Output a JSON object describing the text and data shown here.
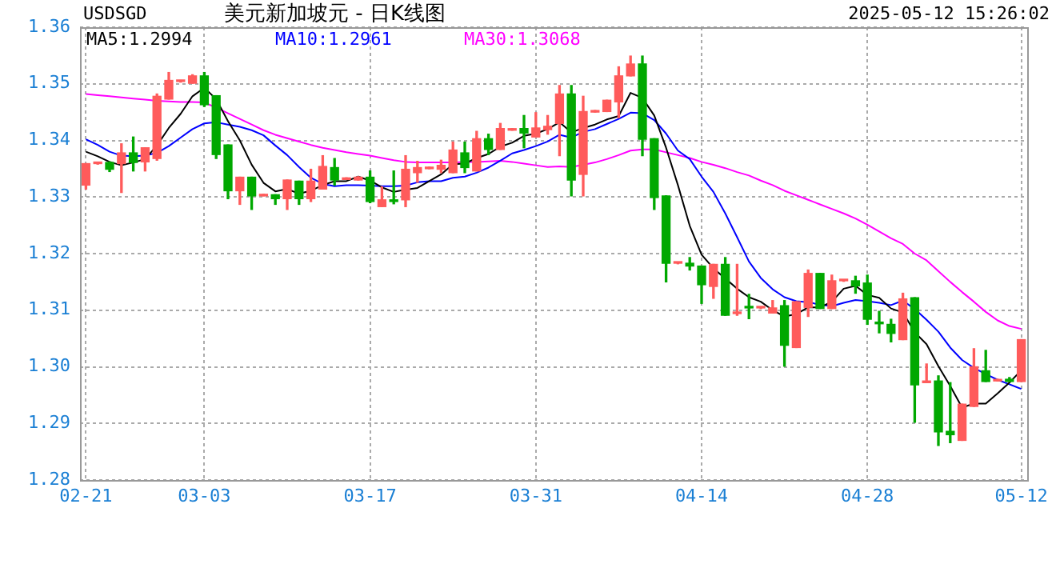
{
  "chart_data": {
    "type": "candlestick",
    "title": "美元新加坡元 - 日K线图",
    "subtitle": "2025-05-12 15:26:02",
    "annotations": [
      "USDSGD"
    ],
    "categories": [
      "02-21",
      null,
      null,
      null,
      null,
      null,
      null,
      null,
      null,
      null,
      "03-03",
      null,
      null,
      null,
      null,
      null,
      null,
      null,
      null,
      null,
      null,
      null,
      null,
      null,
      "03-17",
      null,
      null,
      null,
      null,
      null,
      null,
      null,
      null,
      null,
      null,
      null,
      null,
      null,
      "03-31",
      null,
      null,
      null,
      null,
      null,
      null,
      null,
      null,
      null,
      null,
      null,
      null,
      null,
      "04-14",
      null,
      null,
      null,
      null,
      null,
      null,
      null,
      null,
      null,
      null,
      null,
      null,
      null,
      "04-28",
      null,
      null,
      null,
      null,
      null,
      null,
      null,
      null,
      null,
      null,
      null,
      null,
      "05-12"
    ],
    "ohlc": [
      [
        1.3321,
        1.3359,
        1.3314,
        1.3359
      ],
      [
        1.3359,
        1.336,
        1.3358,
        1.336
      ],
      [
        1.3361,
        1.3362,
        1.3345,
        1.3349
      ],
      [
        1.3359,
        1.3394,
        1.3308,
        1.3378
      ],
      [
        1.3378,
        1.3406,
        1.3346,
        1.3361
      ],
      [
        1.3362,
        1.3387,
        1.3346,
        1.3387
      ],
      [
        1.3368,
        1.3482,
        1.3365,
        1.3478
      ],
      [
        1.3473,
        1.352,
        1.3473,
        1.3506
      ],
      [
        1.3504,
        1.3506,
        1.3503,
        1.3505
      ],
      [
        1.3501,
        1.3516,
        1.3501,
        1.3514
      ],
      [
        1.3514,
        1.352,
        1.346,
        1.3463
      ],
      [
        1.3479,
        1.3479,
        1.3368,
        1.3375
      ],
      [
        1.3392,
        1.3392,
        1.3297,
        1.3311
      ],
      [
        1.3311,
        1.3335,
        1.3287,
        1.3335
      ],
      [
        1.3335,
        1.3335,
        1.3278,
        1.3302
      ],
      [
        1.3302,
        1.3304,
        1.3302,
        1.3304
      ],
      [
        1.3304,
        1.3304,
        1.3287,
        1.3297
      ],
      [
        1.3297,
        1.333,
        1.3278,
        1.333
      ],
      [
        1.3328,
        1.3328,
        1.3287,
        1.3297
      ],
      [
        1.3297,
        1.3349,
        1.3292,
        1.3328
      ],
      [
        1.3314,
        1.3373,
        1.3314,
        1.3354
      ],
      [
        1.3352,
        1.3368,
        1.3321,
        1.333
      ],
      [
        1.3331,
        1.3333,
        1.3331,
        1.3332
      ],
      [
        1.333,
        1.3336,
        1.333,
        1.3335
      ],
      [
        1.3335,
        1.3346,
        1.329,
        1.3292
      ],
      [
        1.3283,
        1.3318,
        1.3283,
        1.3295
      ],
      [
        1.3295,
        1.3346,
        1.3288,
        1.3292
      ],
      [
        1.3295,
        1.3373,
        1.3283,
        1.3349
      ],
      [
        1.3343,
        1.3363,
        1.3326,
        1.3352
      ],
      [
        1.335,
        1.3352,
        1.335,
        1.3351
      ],
      [
        1.3349,
        1.3365,
        1.3343,
        1.3356
      ],
      [
        1.3343,
        1.3397,
        1.3343,
        1.3383
      ],
      [
        1.3378,
        1.3397,
        1.3343,
        1.3352
      ],
      [
        1.3346,
        1.3416,
        1.3346,
        1.3403
      ],
      [
        1.3403,
        1.3411,
        1.3375,
        1.3384
      ],
      [
        1.3384,
        1.343,
        1.3384,
        1.3421
      ],
      [
        1.3418,
        1.342,
        1.3418,
        1.3419
      ],
      [
        1.3421,
        1.3444,
        1.3387,
        1.3413
      ],
      [
        1.3406,
        1.3449,
        1.3406,
        1.3422
      ],
      [
        1.3419,
        1.3444,
        1.3411,
        1.3425
      ],
      [
        1.343,
        1.3497,
        1.3373,
        1.3482
      ],
      [
        1.3482,
        1.3497,
        1.3302,
        1.333
      ],
      [
        1.334,
        1.3478,
        1.3302,
        1.3451
      ],
      [
        1.345,
        1.3452,
        1.345,
        1.3451
      ],
      [
        1.3451,
        1.3471,
        1.3451,
        1.3471
      ],
      [
        1.3468,
        1.353,
        1.344,
        1.3514
      ],
      [
        1.3514,
        1.3549,
        1.3514,
        1.3535
      ],
      [
        1.3535,
        1.3549,
        1.3373,
        1.3402
      ],
      [
        1.3403,
        1.3403,
        1.3278,
        1.3299
      ],
      [
        1.3302,
        1.3302,
        1.315,
        1.3183
      ],
      [
        1.3183,
        1.3184,
        1.3182,
        1.3184
      ],
      [
        1.3183,
        1.3193,
        1.3171,
        1.3178
      ],
      [
        1.3178,
        1.3178,
        1.3112,
        1.3145
      ],
      [
        1.3142,
        1.3181,
        1.3121,
        1.3181
      ],
      [
        1.3181,
        1.3193,
        1.3091,
        1.3091
      ],
      [
        1.3094,
        1.3181,
        1.3091,
        1.3095
      ],
      [
        1.3106,
        1.3128,
        1.3085,
        1.3104
      ],
      [
        1.3104,
        1.3105,
        1.3103,
        1.3105
      ],
      [
        1.3095,
        1.3117,
        1.3095,
        1.3104
      ],
      [
        1.3108,
        1.3117,
        1.3001,
        1.3038
      ],
      [
        1.3034,
        1.3115,
        1.3034,
        1.3115
      ],
      [
        1.3105,
        1.3171,
        1.3089,
        1.3165
      ],
      [
        1.3165,
        1.3165,
        1.3103,
        1.3103
      ],
      [
        1.3103,
        1.3162,
        1.3103,
        1.3152
      ],
      [
        1.3152,
        1.3153,
        1.3151,
        1.3153
      ],
      [
        1.3152,
        1.316,
        1.313,
        1.3143
      ],
      [
        1.3148,
        1.3162,
        1.3075,
        1.3084
      ],
      [
        1.3079,
        1.3098,
        1.306,
        1.3076
      ],
      [
        1.3075,
        1.3084,
        1.3044,
        1.3059
      ],
      [
        1.3048,
        1.313,
        1.3048,
        1.312
      ],
      [
        1.3122,
        1.3122,
        1.2902,
        1.2968
      ],
      [
        1.2972,
        1.3005,
        1.2972,
        1.2975
      ],
      [
        1.2975,
        1.2984,
        1.2861,
        1.2885
      ],
      [
        1.2886,
        1.2972,
        1.2866,
        1.288
      ],
      [
        1.287,
        1.2934,
        1.287,
        1.2934
      ],
      [
        1.293,
        1.3032,
        1.293,
        1.3
      ],
      [
        1.2993,
        1.3029,
        1.2974,
        1.2974
      ],
      [
        1.2975,
        1.2976,
        1.2975,
        1.2976
      ],
      [
        1.2978,
        1.2981,
        1.2974,
        1.2974
      ],
      [
        1.2974,
        1.3048,
        1.2974,
        1.3048
      ]
    ],
    "colors": [
      "#ff5b5b",
      "#ff5b5b",
      "#00a800",
      "#ff5b5b",
      "#00a800",
      "#ff5b5b",
      "#ff5b5b",
      "#ff5b5b",
      "#ff5b5b",
      "#ff5b5b",
      "#00a800",
      "#00a800",
      "#00a800",
      "#ff5b5b",
      "#00a800",
      "#ff5b5b",
      "#00a800",
      "#ff5b5b",
      "#00a800",
      "#ff5b5b",
      "#ff5b5b",
      "#00a800",
      "#ff5b5b",
      "#ff5b5b",
      "#00a800",
      "#ff5b5b",
      "#00a800",
      "#ff5b5b",
      "#ff5b5b",
      "#ff5b5b",
      "#ff5b5b",
      "#ff5b5b",
      "#00a800",
      "#ff5b5b",
      "#00a800",
      "#ff5b5b",
      "#ff5b5b",
      "#00a800",
      "#ff5b5b",
      "#ff5b5b",
      "#ff5b5b",
      "#00a800",
      "#ff5b5b",
      "#ff5b5b",
      "#ff5b5b",
      "#ff5b5b",
      "#ff5b5b",
      "#00a800",
      "#00a800",
      "#00a800",
      "#ff5b5b",
      "#00a800",
      "#00a800",
      "#ff5b5b",
      "#00a800",
      "#ff5b5b",
      "#00a800",
      "#ff5b5b",
      "#ff5b5b",
      "#00a800",
      "#ff5b5b",
      "#ff5b5b",
      "#00a800",
      "#ff5b5b",
      "#ff5b5b",
      "#00a800",
      "#00a800",
      "#00a800",
      "#00a800",
      "#ff5b5b",
      "#00a800",
      "#ff5b5b",
      "#00a800",
      "#00a800",
      "#ff5b5b",
      "#ff5b5b",
      "#00a800",
      "#ff5b5b",
      "#00a800",
      "#ff5b5b"
    ],
    "series": [
      {
        "name": "MA5:1.2994",
        "type": "line",
        "color": "#000000",
        "values": [
          1.338,
          1.3372,
          1.3362,
          1.3356,
          1.3361,
          1.3367,
          1.3391,
          1.3422,
          1.3447,
          1.3478,
          1.3493,
          1.3473,
          1.3434,
          1.34,
          1.3357,
          1.3325,
          1.331,
          1.3314,
          1.3306,
          1.3311,
          1.3321,
          1.3328,
          1.3328,
          1.3336,
          1.3329,
          1.3317,
          1.3309,
          1.3313,
          1.3316,
          1.3328,
          1.334,
          1.3358,
          1.3359,
          1.3369,
          1.3376,
          1.3389,
          1.3396,
          1.3408,
          1.3412,
          1.342,
          1.3432,
          1.3414,
          1.3422,
          1.3428,
          1.3437,
          1.3443,
          1.3484,
          1.3475,
          1.3444,
          1.3387,
          1.3321,
          1.3249,
          1.3198,
          1.3174,
          1.3156,
          1.3138,
          1.3123,
          1.3115,
          1.31,
          1.3089,
          1.3093,
          1.3105,
          1.3105,
          1.3115,
          1.3138,
          1.3143,
          1.3127,
          1.3122,
          1.3103,
          1.3096,
          1.3061,
          1.304,
          1.3001,
          1.2966,
          1.2928,
          1.2935,
          1.2935,
          1.2953,
          1.2972,
          1.2994
        ]
      },
      {
        "name": "MA10:1.2961",
        "type": "line",
        "color": "#0000ff",
        "values": [
          1.3402,
          1.3392,
          1.338,
          1.3373,
          1.3372,
          1.3373,
          1.3378,
          1.339,
          1.3405,
          1.342,
          1.343,
          1.3432,
          1.3428,
          1.3424,
          1.3418,
          1.3409,
          1.3391,
          1.3374,
          1.3353,
          1.3334,
          1.3323,
          1.3319,
          1.3321,
          1.3321,
          1.332,
          1.3319,
          1.3319,
          1.332,
          1.3326,
          1.3328,
          1.3328,
          1.3334,
          1.3336,
          1.3343,
          1.3352,
          1.3364,
          1.3377,
          1.3383,
          1.339,
          1.3398,
          1.341,
          1.3405,
          1.3415,
          1.342,
          1.3429,
          1.3438,
          1.3449,
          1.3448,
          1.3436,
          1.3412,
          1.3382,
          1.3367,
          1.3336,
          1.3309,
          1.3271,
          1.3229,
          1.3186,
          1.3157,
          1.3137,
          1.3123,
          1.3116,
          1.3114,
          1.311,
          1.3107,
          1.3113,
          1.3118,
          1.3116,
          1.3113,
          1.3109,
          1.3117,
          1.3102,
          1.3083,
          1.3062,
          1.3034,
          1.3012,
          1.2998,
          1.2987,
          1.2977,
          1.2969,
          1.2961
        ]
      },
      {
        "name": "MA30:1.3068",
        "type": "line",
        "color": "#ff00ff",
        "values": [
          1.3482,
          1.348,
          1.3478,
          1.3476,
          1.3474,
          1.3472,
          1.347,
          1.3469,
          1.3468,
          1.3468,
          1.3467,
          1.3458,
          1.3448,
          1.3438,
          1.3428,
          1.3418,
          1.341,
          1.3404,
          1.3398,
          1.3392,
          1.3387,
          1.3383,
          1.3379,
          1.3376,
          1.3373,
          1.3369,
          1.3365,
          1.3362,
          1.3361,
          1.3361,
          1.3361,
          1.3361,
          1.3362,
          1.3362,
          1.3363,
          1.3364,
          1.3362,
          1.3359,
          1.3356,
          1.3353,
          1.3354,
          1.3353,
          1.3357,
          1.3361,
          1.3367,
          1.3374,
          1.3382,
          1.3384,
          1.3384,
          1.3379,
          1.3374,
          1.3369,
          1.3362,
          1.3357,
          1.3351,
          1.3344,
          1.3338,
          1.3329,
          1.3321,
          1.3311,
          1.3303,
          1.3295,
          1.3287,
          1.3279,
          1.3271,
          1.3262,
          1.3251,
          1.3239,
          1.3227,
          1.3217,
          1.32,
          1.3188,
          1.3169,
          1.315,
          1.3132,
          1.3115,
          1.3097,
          1.3082,
          1.3072,
          1.3067
        ]
      }
    ],
    "ylim": [
      1.28,
      1.36
    ],
    "yticks": [
      1.28,
      1.29,
      {
        "value": 1.3,
        "label": "1.30"
      },
      1.31,
      1.32,
      1.33,
      1.34,
      1.35,
      1.36
    ],
    "grid": true,
    "legend": "top left",
    "marker": "none"
  }
}
